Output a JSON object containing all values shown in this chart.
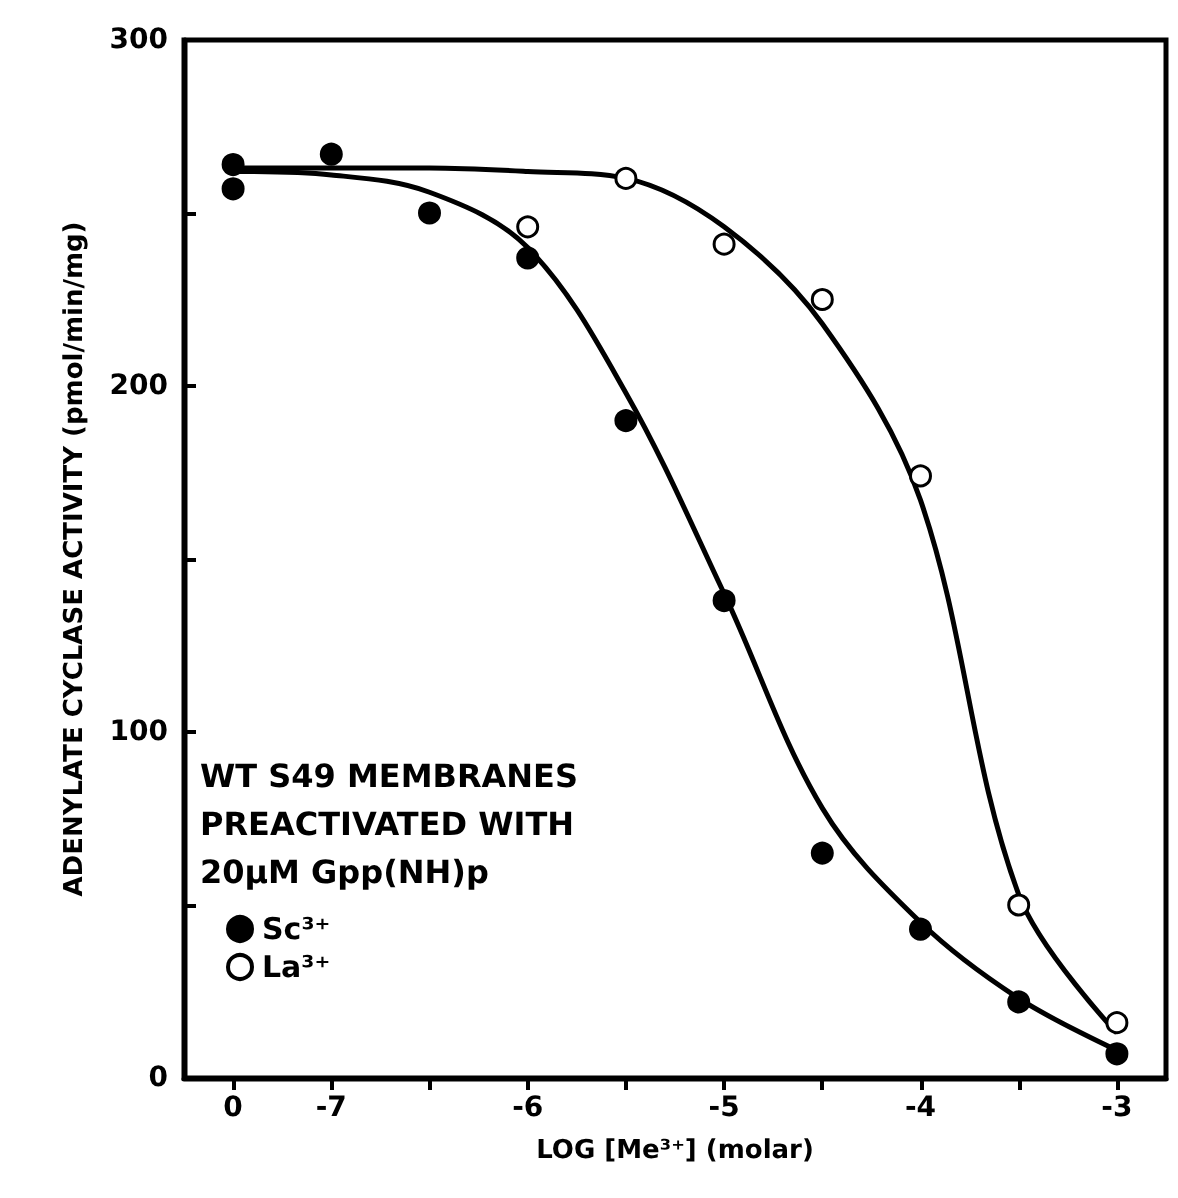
{
  "chart_data": {
    "type": "scatter",
    "xlabel": "LOG [Me³⁺] (molar)",
    "ylabel": "ADENYLATE CYCLASE ACTIVITY (pmol/min/mg)",
    "annotations": [
      "WT S49 MEMBRANES",
      "PREACTIVATED WITH",
      "20μM Gpp(NH)p"
    ],
    "categories": [
      "0",
      "-7",
      null,
      "-6",
      null,
      "-5",
      null,
      "-4",
      null,
      "-3"
    ],
    "series": [
      {
        "name": "Sc³⁺",
        "color": "#000000",
        "marker": "circle",
        "values": [
          264,
          267,
          250,
          237,
          190,
          138,
          65,
          43,
          22,
          7
        ]
      },
      {
        "color": "#000000",
        "marker": "circle",
        "values": [
          257,
          null,
          null,
          null,
          null,
          null,
          null,
          null,
          null,
          null
        ]
      },
      {
        "name": "La³⁺",
        "color": "#ffffff",
        "marker": "circle",
        "values": [
          null,
          null,
          null,
          246,
          260,
          241,
          225,
          174,
          50,
          16
        ]
      },
      {
        "type": "line",
        "color": "#000000",
        "marker": "none",
        "line_style": "solid",
        "values": [
          262,
          261,
          256,
          240,
          198,
          140,
          78,
          45,
          23,
          8
        ]
      },
      {
        "type": "line",
        "color": "#000000",
        "marker": "none",
        "line_style": "solid",
        "values": [
          263,
          263,
          263,
          262,
          260,
          246,
          218,
          167,
          53,
          13
        ]
      }
    ],
    "ylim": [
      0,
      300
    ],
    "yticks": [
      0,
      {
        "value": 50,
        "label": null
      },
      100,
      {
        "value": 150,
        "label": null
      },
      200,
      {
        "value": 250,
        "label": null
      },
      300
    ],
    "grid": false,
    "legend": "bottom left"
  }
}
